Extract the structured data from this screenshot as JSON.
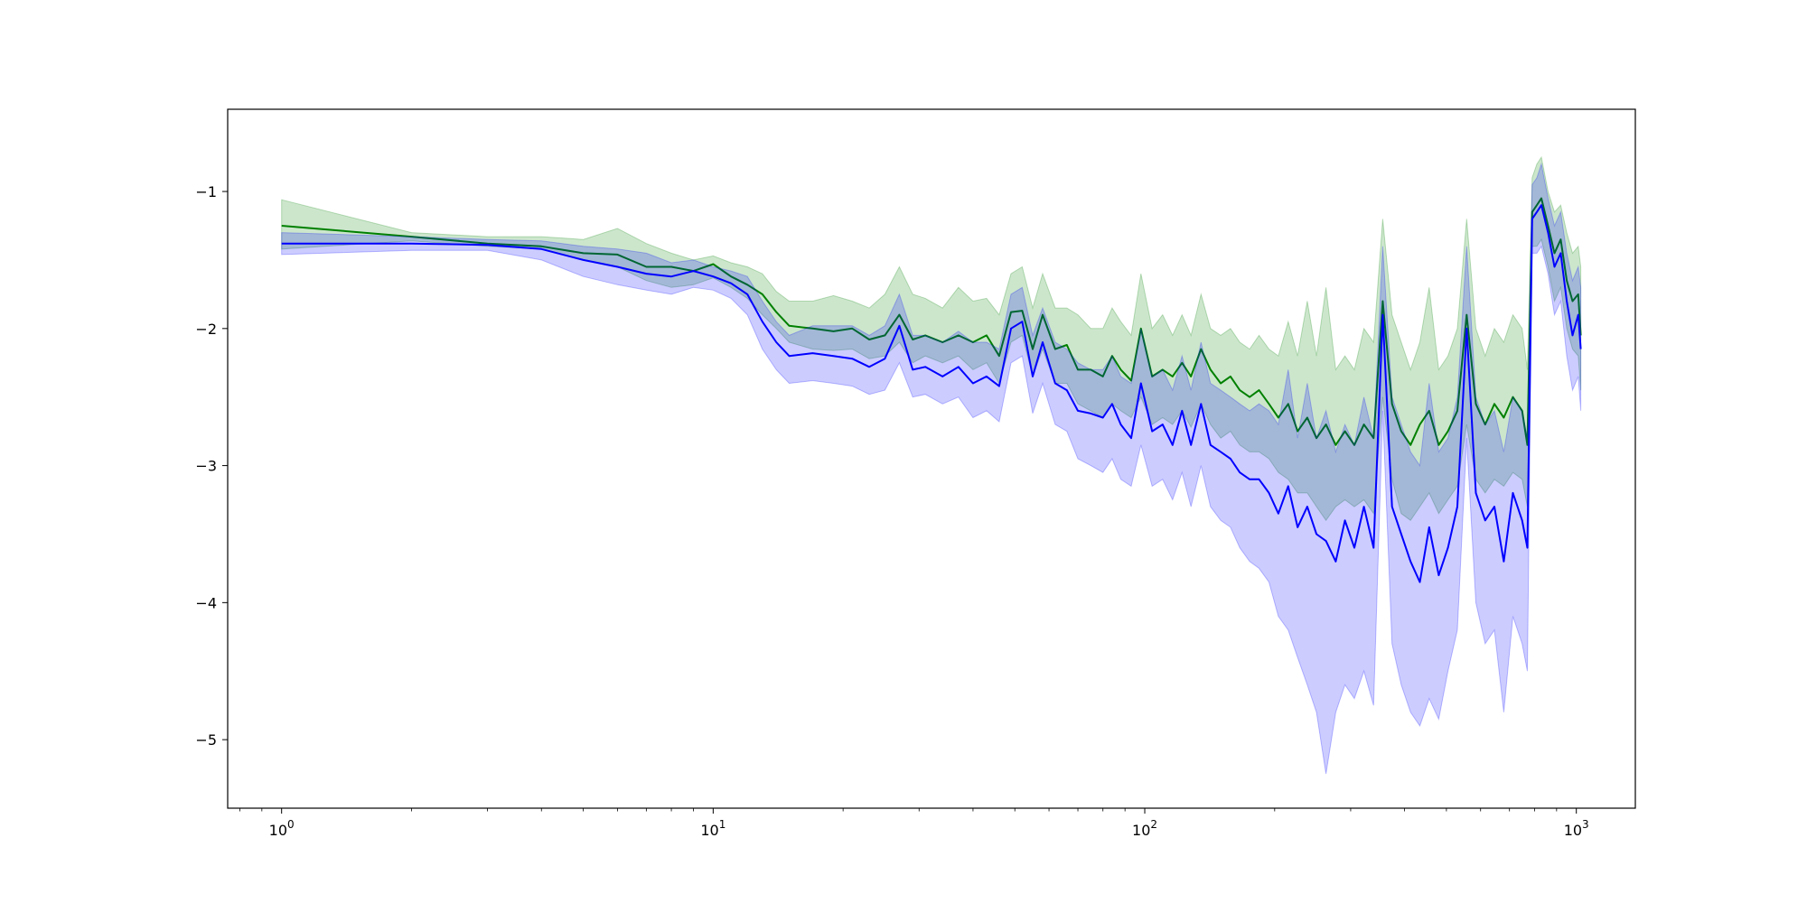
{
  "chart_data": {
    "type": "line",
    "title": "",
    "xlabel": "",
    "ylabel": "",
    "xscale": "log",
    "xlim": [
      0.75,
      1370
    ],
    "ylim": [
      -5.5,
      -0.4
    ],
    "grid": false,
    "legend": "none",
    "x_ticks": [
      {
        "value": 1,
        "base": "10",
        "exp": "0"
      },
      {
        "value": 10,
        "base": "10",
        "exp": "1"
      },
      {
        "value": 100,
        "base": "10",
        "exp": "2"
      },
      {
        "value": 1000,
        "base": "10",
        "exp": "3"
      }
    ],
    "y_ticks": [
      {
        "value": -1,
        "label": "−1"
      },
      {
        "value": -2,
        "label": "−2"
      },
      {
        "value": -3,
        "label": "−3"
      },
      {
        "value": -4,
        "label": "−4"
      },
      {
        "value": -5,
        "label": "−5"
      }
    ],
    "series": [
      {
        "color": "#008000",
        "band_color": "#008000",
        "band_opacity": 0.2,
        "points": [
          [
            1,
            -1.25,
            -1.06,
            -1.42
          ],
          [
            2,
            -1.33,
            -1.3,
            -1.36
          ],
          [
            3,
            -1.38,
            -1.33,
            -1.4
          ],
          [
            4,
            -1.4,
            -1.33,
            -1.42
          ],
          [
            5,
            -1.45,
            -1.35,
            -1.5
          ],
          [
            6,
            -1.46,
            -1.27,
            -1.55
          ],
          [
            7,
            -1.55,
            -1.38,
            -1.65
          ],
          [
            8,
            -1.55,
            -1.45,
            -1.7
          ],
          [
            9,
            -1.58,
            -1.5,
            -1.68
          ],
          [
            10,
            -1.53,
            -1.47,
            -1.63
          ],
          [
            11,
            -1.62,
            -1.52,
            -1.7
          ],
          [
            12,
            -1.68,
            -1.55,
            -1.78
          ],
          [
            13,
            -1.75,
            -1.6,
            -1.9
          ],
          [
            14,
            -1.88,
            -1.73,
            -2.0
          ],
          [
            15,
            -1.98,
            -1.8,
            -2.1
          ],
          [
            17,
            -2.0,
            -1.8,
            -2.15
          ],
          [
            19,
            -2.02,
            -1.76,
            -2.16
          ],
          [
            21,
            -2.0,
            -1.8,
            -2.15
          ],
          [
            23,
            -2.08,
            -1.85,
            -2.22
          ],
          [
            25,
            -2.05,
            -1.75,
            -2.2
          ],
          [
            27,
            -1.9,
            -1.55,
            -2.1
          ],
          [
            29,
            -2.08,
            -1.75,
            -2.25
          ],
          [
            31,
            -2.05,
            -1.78,
            -2.2
          ],
          [
            34,
            -2.1,
            -1.85,
            -2.25
          ],
          [
            37,
            -2.05,
            -1.7,
            -2.2
          ],
          [
            40,
            -2.1,
            -1.8,
            -2.3
          ],
          [
            43,
            -2.05,
            -1.78,
            -2.25
          ],
          [
            46,
            -2.2,
            -1.9,
            -2.4
          ],
          [
            49,
            -1.88,
            -1.6,
            -2.1
          ],
          [
            52,
            -1.87,
            -1.55,
            -2.05
          ],
          [
            55,
            -2.15,
            -1.85,
            -2.35
          ],
          [
            58,
            -1.9,
            -1.6,
            -2.15
          ],
          [
            62,
            -2.15,
            -1.85,
            -2.4
          ],
          [
            66,
            -2.12,
            -1.85,
            -2.4
          ],
          [
            70,
            -2.3,
            -1.9,
            -2.55
          ],
          [
            75,
            -2.3,
            -2.0,
            -2.6
          ],
          [
            80,
            -2.35,
            -2.0,
            -2.65
          ],
          [
            84,
            -2.2,
            -1.85,
            -2.55
          ],
          [
            88,
            -2.3,
            -1.95,
            -2.6
          ],
          [
            93,
            -2.38,
            -2.05,
            -2.65
          ],
          [
            98,
            -2.0,
            -1.6,
            -2.5
          ],
          [
            104,
            -2.35,
            -2.0,
            -2.7
          ],
          [
            110,
            -2.3,
            -1.9,
            -2.65
          ],
          [
            116,
            -2.35,
            -2.05,
            -2.7
          ],
          [
            122,
            -2.25,
            -1.9,
            -2.6
          ],
          [
            128,
            -2.35,
            -2.05,
            -2.72
          ],
          [
            135,
            -2.15,
            -1.75,
            -2.55
          ],
          [
            142,
            -2.3,
            -2.0,
            -2.7
          ],
          [
            150,
            -2.4,
            -2.05,
            -2.8
          ],
          [
            158,
            -2.35,
            -2.0,
            -2.75
          ],
          [
            166,
            -2.45,
            -2.1,
            -2.85
          ],
          [
            175,
            -2.5,
            -2.15,
            -2.9
          ],
          [
            184,
            -2.45,
            -2.05,
            -2.9
          ],
          [
            194,
            -2.55,
            -2.15,
            -2.95
          ],
          [
            204,
            -2.65,
            -2.2,
            -3.05
          ],
          [
            215,
            -2.55,
            -1.95,
            -3.1
          ],
          [
            226,
            -2.75,
            -2.2,
            -3.2
          ],
          [
            238,
            -2.65,
            -1.8,
            -3.2
          ],
          [
            250,
            -2.8,
            -2.2,
            -3.3
          ],
          [
            263,
            -2.7,
            -1.7,
            -3.4
          ],
          [
            277,
            -2.85,
            -2.3,
            -3.3
          ],
          [
            291,
            -2.75,
            -2.2,
            -3.25
          ],
          [
            306,
            -2.85,
            -2.3,
            -3.3
          ],
          [
            322,
            -2.7,
            -2.0,
            -3.25
          ],
          [
            339,
            -2.8,
            -2.1,
            -3.35
          ],
          [
            356,
            -1.8,
            -1.2,
            -2.5
          ],
          [
            374,
            -2.55,
            -1.9,
            -3.1
          ],
          [
            393,
            -2.75,
            -2.1,
            -3.35
          ],
          [
            413,
            -2.85,
            -2.3,
            -3.4
          ],
          [
            434,
            -2.7,
            -2.1,
            -3.3
          ],
          [
            456,
            -2.6,
            -1.7,
            -3.2
          ],
          [
            480,
            -2.85,
            -2.3,
            -3.35
          ],
          [
            504,
            -2.75,
            -2.2,
            -3.25
          ],
          [
            530,
            -2.6,
            -2.0,
            -3.15
          ],
          [
            557,
            -1.9,
            -1.2,
            -2.7
          ],
          [
            585,
            -2.55,
            -2.0,
            -3.1
          ],
          [
            615,
            -2.7,
            -2.2,
            -3.2
          ],
          [
            646,
            -2.55,
            -2.0,
            -3.1
          ],
          [
            679,
            -2.65,
            -2.1,
            -3.15
          ],
          [
            713,
            -2.5,
            -1.9,
            -3.05
          ],
          [
            749,
            -2.6,
            -2.0,
            -3.1
          ],
          [
            770,
            -2.85,
            -2.3,
            -3.3
          ],
          [
            790,
            -1.15,
            -0.9,
            -1.4
          ],
          [
            810,
            -1.1,
            -0.8,
            -1.4
          ],
          [
            830,
            -1.05,
            -0.75,
            -1.35
          ],
          [
            860,
            -1.25,
            -1.0,
            -1.55
          ],
          [
            890,
            -1.45,
            -1.15,
            -1.8
          ],
          [
            920,
            -1.35,
            -1.1,
            -1.7
          ],
          [
            950,
            -1.65,
            -1.3,
            -2.0
          ],
          [
            980,
            -1.8,
            -1.45,
            -2.15
          ],
          [
            1010,
            -1.75,
            -1.4,
            -2.2
          ],
          [
            1024,
            -2.05,
            -1.55,
            -2.45
          ]
        ]
      },
      {
        "color": "#0000ff",
        "band_color": "#0000ff",
        "band_opacity": 0.2,
        "points": [
          [
            1,
            -1.38,
            -1.3,
            -1.46
          ],
          [
            2,
            -1.38,
            -1.33,
            -1.43
          ],
          [
            3,
            -1.39,
            -1.35,
            -1.43
          ],
          [
            4,
            -1.42,
            -1.36,
            -1.5
          ],
          [
            5,
            -1.5,
            -1.4,
            -1.62
          ],
          [
            6,
            -1.55,
            -1.42,
            -1.68
          ],
          [
            7,
            -1.6,
            -1.45,
            -1.72
          ],
          [
            8,
            -1.62,
            -1.52,
            -1.75
          ],
          [
            9,
            -1.58,
            -1.5,
            -1.7
          ],
          [
            10,
            -1.62,
            -1.55,
            -1.72
          ],
          [
            11,
            -1.67,
            -1.58,
            -1.78
          ],
          [
            12,
            -1.75,
            -1.62,
            -1.9
          ],
          [
            13,
            -1.95,
            -1.8,
            -2.15
          ],
          [
            14,
            -2.1,
            -1.95,
            -2.3
          ],
          [
            15,
            -2.2,
            -2.05,
            -2.4
          ],
          [
            17,
            -2.18,
            -1.98,
            -2.38
          ],
          [
            19,
            -2.2,
            -1.98,
            -2.4
          ],
          [
            21,
            -2.22,
            -1.98,
            -2.42
          ],
          [
            23,
            -2.28,
            -2.05,
            -2.48
          ],
          [
            25,
            -2.22,
            -1.98,
            -2.45
          ],
          [
            27,
            -1.98,
            -1.75,
            -2.25
          ],
          [
            29,
            -2.3,
            -2.05,
            -2.5
          ],
          [
            31,
            -2.28,
            -2.05,
            -2.48
          ],
          [
            34,
            -2.35,
            -2.1,
            -2.55
          ],
          [
            37,
            -2.28,
            -2.02,
            -2.5
          ],
          [
            40,
            -2.4,
            -2.1,
            -2.65
          ],
          [
            43,
            -2.35,
            -2.1,
            -2.6
          ],
          [
            46,
            -2.42,
            -2.15,
            -2.68
          ],
          [
            49,
            -2.0,
            -1.75,
            -2.25
          ],
          [
            52,
            -1.95,
            -1.7,
            -2.2
          ],
          [
            55,
            -2.35,
            -2.05,
            -2.62
          ],
          [
            58,
            -2.1,
            -1.85,
            -2.4
          ],
          [
            62,
            -2.4,
            -2.1,
            -2.7
          ],
          [
            66,
            -2.45,
            -2.15,
            -2.75
          ],
          [
            70,
            -2.6,
            -2.25,
            -2.95
          ],
          [
            75,
            -2.62,
            -2.3,
            -3.0
          ],
          [
            80,
            -2.65,
            -2.3,
            -3.05
          ],
          [
            84,
            -2.55,
            -2.2,
            -2.95
          ],
          [
            88,
            -2.7,
            -2.35,
            -3.1
          ],
          [
            93,
            -2.8,
            -2.4,
            -3.15
          ],
          [
            98,
            -2.4,
            -2.0,
            -2.85
          ],
          [
            104,
            -2.75,
            -2.35,
            -3.15
          ],
          [
            110,
            -2.7,
            -2.3,
            -3.1
          ],
          [
            116,
            -2.85,
            -2.45,
            -3.25
          ],
          [
            122,
            -2.6,
            -2.2,
            -3.05
          ],
          [
            128,
            -2.85,
            -2.45,
            -3.3
          ],
          [
            135,
            -2.55,
            -2.1,
            -3.0
          ],
          [
            142,
            -2.85,
            -2.4,
            -3.3
          ],
          [
            150,
            -2.9,
            -2.45,
            -3.4
          ],
          [
            158,
            -2.95,
            -2.5,
            -3.45
          ],
          [
            166,
            -3.05,
            -2.55,
            -3.6
          ],
          [
            175,
            -3.1,
            -2.6,
            -3.7
          ],
          [
            184,
            -3.1,
            -2.55,
            -3.75
          ],
          [
            194,
            -3.2,
            -2.6,
            -3.85
          ],
          [
            204,
            -3.35,
            -2.7,
            -4.1
          ],
          [
            215,
            -3.15,
            -2.3,
            -4.2
          ],
          [
            226,
            -3.45,
            -2.8,
            -4.4
          ],
          [
            238,
            -3.3,
            -2.4,
            -4.6
          ],
          [
            250,
            -3.5,
            -2.8,
            -4.8
          ],
          [
            263,
            -3.55,
            -2.6,
            -5.25
          ],
          [
            277,
            -3.7,
            -2.9,
            -4.8
          ],
          [
            291,
            -3.4,
            -2.7,
            -4.6
          ],
          [
            306,
            -3.6,
            -2.85,
            -4.7
          ],
          [
            322,
            -3.3,
            -2.5,
            -4.5
          ],
          [
            339,
            -3.6,
            -2.8,
            -4.75
          ],
          [
            356,
            -1.9,
            -1.4,
            -2.6
          ],
          [
            374,
            -3.3,
            -2.5,
            -4.3
          ],
          [
            393,
            -3.5,
            -2.7,
            -4.6
          ],
          [
            413,
            -3.7,
            -2.9,
            -4.8
          ],
          [
            434,
            -3.85,
            -3.0,
            -4.9
          ],
          [
            456,
            -3.45,
            -2.4,
            -4.7
          ],
          [
            480,
            -3.8,
            -2.9,
            -4.85
          ],
          [
            504,
            -3.6,
            -2.8,
            -4.5
          ],
          [
            530,
            -3.3,
            -2.5,
            -4.2
          ],
          [
            557,
            -2.0,
            -1.4,
            -2.8
          ],
          [
            585,
            -3.2,
            -2.5,
            -4.0
          ],
          [
            615,
            -3.4,
            -2.7,
            -4.3
          ],
          [
            646,
            -3.3,
            -2.6,
            -4.2
          ],
          [
            679,
            -3.7,
            -2.9,
            -4.8
          ],
          [
            713,
            -3.2,
            -2.5,
            -4.1
          ],
          [
            749,
            -3.4,
            -2.6,
            -4.3
          ],
          [
            770,
            -3.6,
            -2.8,
            -4.5
          ],
          [
            790,
            -1.2,
            -0.95,
            -1.45
          ],
          [
            810,
            -1.15,
            -0.9,
            -1.45
          ],
          [
            830,
            -1.1,
            -0.8,
            -1.4
          ],
          [
            860,
            -1.3,
            -1.05,
            -1.6
          ],
          [
            890,
            -1.55,
            -1.25,
            -1.9
          ],
          [
            920,
            -1.45,
            -1.15,
            -1.8
          ],
          [
            950,
            -1.8,
            -1.45,
            -2.2
          ],
          [
            980,
            -2.05,
            -1.65,
            -2.45
          ],
          [
            1010,
            -1.9,
            -1.55,
            -2.35
          ],
          [
            1024,
            -2.15,
            -1.7,
            -2.6
          ]
        ]
      }
    ]
  }
}
